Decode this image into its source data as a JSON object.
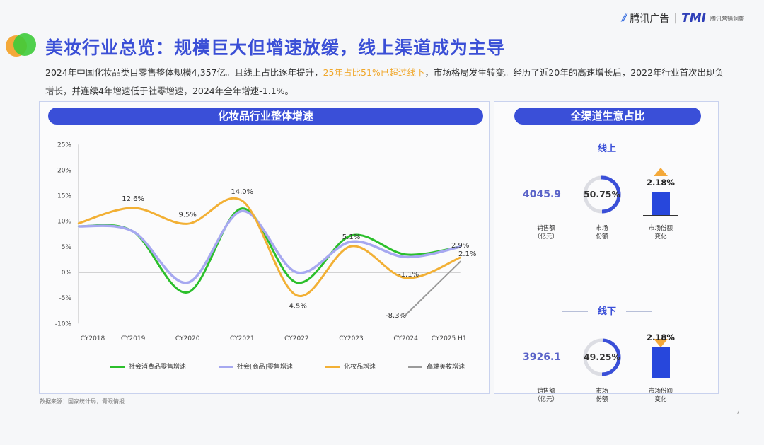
{
  "header": {
    "brand1": "腾讯广告",
    "brand2": "TMI",
    "brand2_sub": "腾讯营销洞察",
    "title": "美妆行业总览：规模巨大但增速放缓，线上渠道成为主导",
    "desc_part1": "2024年中国化妆品类目零售整体规模4,357亿。且线上占比逐年提升，",
    "desc_highlight": "25年占比51%已超过线下",
    "desc_part2": "，市场格局发生转变。经历了近20年的高速增长后，2022年行业首次出现负增长，并连续4年增速低于社零增速，2024年全年增速-1.1%。"
  },
  "left_panel": {
    "title": "化妆品行业整体增速"
  },
  "right_panel": {
    "title": "全渠道生意占比",
    "sections": [
      {
        "name": "线上",
        "sales": "4045.9",
        "sales_label1": "销售额",
        "sales_label2": "（亿元）",
        "share": "50.75%",
        "share_value": 50.75,
        "share_label1": "市场",
        "share_label2": "份额",
        "change": "2.18%",
        "direction": "up",
        "change_label1": "市场份额",
        "change_label2": "变化"
      },
      {
        "name": "线下",
        "sales": "3926.1",
        "sales_label1": "销售额",
        "sales_label2": "（亿元）",
        "share": "49.25%",
        "share_value": 49.25,
        "share_label1": "市场",
        "share_label2": "份额",
        "change": "2.18%",
        "direction": "down",
        "change_label1": "市场份额",
        "change_label2": "变化"
      }
    ]
  },
  "chart_data": {
    "type": "line",
    "title": "化妆品行业整体增速",
    "categories": [
      "CY2018",
      "CY2019",
      "CY2020",
      "CY2021",
      "CY2022",
      "CY2023",
      "CY2024",
      "CY2025 H1"
    ],
    "ylim": [
      -10,
      25
    ],
    "yticks": [
      "25%",
      "20%",
      "15%",
      "10%",
      "5%",
      "0%",
      "-5%",
      "-10%"
    ],
    "ytick_values": [
      25,
      20,
      15,
      10,
      5,
      0,
      -5,
      -10
    ],
    "legend_position": "bottom",
    "series": [
      {
        "name": "社会消费品零售增速",
        "color": "#2bbf2b",
        "values": [
          9.0,
          8.0,
          -3.9,
          12.5,
          -2.0,
          7.2,
          3.5,
          5.0
        ]
      },
      {
        "name": "社会[商品]零售增速",
        "color": "#a6a8f0",
        "values": [
          9.0,
          8.0,
          -2.0,
          12.0,
          0.0,
          6.0,
          3.0,
          5.0
        ]
      },
      {
        "name": "化妆品增速",
        "color": "#f2b035",
        "values": [
          9.6,
          12.6,
          9.5,
          14.0,
          -4.5,
          5.1,
          -1.1,
          2.9
        ],
        "labels": [
          "",
          "12.6%",
          "9.5%",
          "14.0%",
          "-4.5%",
          "5.1%",
          "-1.1%",
          "2.9%"
        ]
      },
      {
        "name": "高端美妆增速",
        "color": "#9a9a9a",
        "values": [
          null,
          null,
          null,
          null,
          null,
          null,
          -8.3,
          2.1
        ],
        "labels": [
          "",
          "",
          "",
          "",
          "",
          "",
          "-8.3%",
          "2.1%"
        ]
      }
    ]
  },
  "footer": {
    "source": "数据来源：国家统计局，青眼情报",
    "page": "7"
  }
}
